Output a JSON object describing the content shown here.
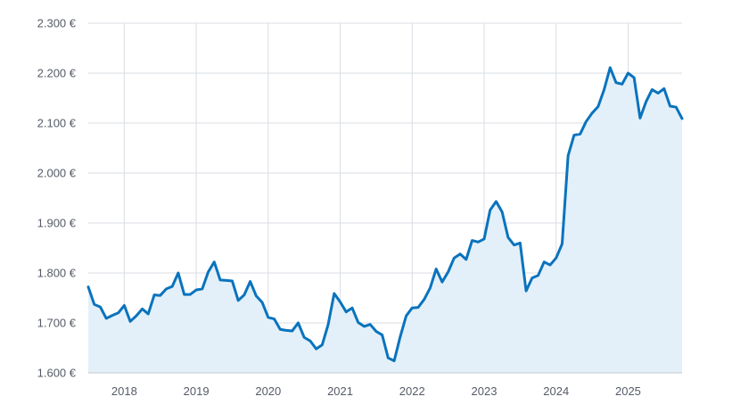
{
  "chart_data": {
    "type": "area",
    "title": "",
    "xlabel": "",
    "ylabel": "",
    "ylim": [
      1600,
      2300
    ],
    "xlim": [
      "2017-07",
      "2025-10"
    ],
    "y_ticks": [
      {
        "value": 1600,
        "label": "1.600 €"
      },
      {
        "value": 1700,
        "label": "1.700 €"
      },
      {
        "value": 1800,
        "label": "1.800 €"
      },
      {
        "value": 1900,
        "label": "1.900 €"
      },
      {
        "value": 2000,
        "label": "2.000 €"
      },
      {
        "value": 2100,
        "label": "2.100 €"
      },
      {
        "value": 2200,
        "label": "2.200 €"
      },
      {
        "value": 2300,
        "label": "2.300 €"
      }
    ],
    "x_ticks": [
      {
        "value": "2018-01",
        "label": "2018"
      },
      {
        "value": "2019-01",
        "label": "2019"
      },
      {
        "value": "2020-01",
        "label": "2020"
      },
      {
        "value": "2021-01",
        "label": "2021"
      },
      {
        "value": "2022-01",
        "label": "2022"
      },
      {
        "value": "2023-01",
        "label": "2023"
      },
      {
        "value": "2024-01",
        "label": "2024"
      },
      {
        "value": "2025-01",
        "label": "2025"
      }
    ],
    "grid": true,
    "line_color": "#0a73bd",
    "fill_color": "#e3f0f9",
    "series": [
      {
        "x": [
          "2017-07",
          "2017-08",
          "2017-09",
          "2017-10",
          "2017-11",
          "2017-12",
          "2018-01",
          "2018-02",
          "2018-03",
          "2018-04",
          "2018-05",
          "2018-06",
          "2018-07",
          "2018-08",
          "2018-09",
          "2018-10",
          "2018-11",
          "2018-12",
          "2019-01",
          "2019-02",
          "2019-03",
          "2019-04",
          "2019-05",
          "2019-06",
          "2019-07",
          "2019-08",
          "2019-09",
          "2019-10",
          "2019-11",
          "2019-12",
          "2020-01",
          "2020-02",
          "2020-03",
          "2020-04",
          "2020-05",
          "2020-06",
          "2020-07",
          "2020-08",
          "2020-09",
          "2020-10",
          "2020-11",
          "2020-12",
          "2021-01",
          "2021-02",
          "2021-03",
          "2021-04",
          "2021-05",
          "2021-06",
          "2021-07",
          "2021-08",
          "2021-09",
          "2021-10",
          "2021-11",
          "2021-12",
          "2022-01",
          "2022-02",
          "2022-03",
          "2022-04",
          "2022-05",
          "2022-06",
          "2022-07",
          "2022-08",
          "2022-09",
          "2022-10",
          "2022-11",
          "2022-12",
          "2023-01",
          "2023-02",
          "2023-03",
          "2023-04",
          "2023-05",
          "2023-06",
          "2023-07",
          "2023-08",
          "2023-09",
          "2023-10",
          "2023-11",
          "2023-12",
          "2024-01",
          "2024-02",
          "2024-03",
          "2024-04",
          "2024-05",
          "2024-06",
          "2024-07",
          "2024-08",
          "2024-09",
          "2024-10",
          "2024-11",
          "2024-12",
          "2025-01",
          "2025-02",
          "2025-03",
          "2025-04",
          "2025-05",
          "2025-06",
          "2025-07",
          "2025-08",
          "2025-09",
          "2025-10"
        ],
        "values": [
          1772,
          1737,
          1732,
          1709,
          1715,
          1720,
          1735,
          1703,
          1714,
          1728,
          1718,
          1756,
          1755,
          1768,
          1773,
          1800,
          1757,
          1757,
          1766,
          1768,
          1802,
          1822,
          1786,
          1785,
          1784,
          1745,
          1756,
          1783,
          1754,
          1741,
          1711,
          1708,
          1687,
          1685,
          1684,
          1700,
          1671,
          1664,
          1648,
          1656,
          1697,
          1759,
          1742,
          1722,
          1730,
          1701,
          1693,
          1697,
          1683,
          1676,
          1630,
          1624,
          1672,
          1714,
          1730,
          1731,
          1747,
          1770,
          1808,
          1782,
          1802,
          1830,
          1838,
          1827,
          1865,
          1862,
          1868,
          1926,
          1943,
          1922,
          1871,
          1856,
          1860,
          1764,
          1790,
          1795,
          1822,
          1816,
          1830,
          1858,
          2035,
          2076,
          2078,
          2103,
          2120,
          2133,
          2167,
          2211,
          2181,
          2178,
          2200,
          2191,
          2110,
          2143,
          2167,
          2160,
          2169,
          2134,
          2132,
          2109
        ]
      }
    ]
  }
}
